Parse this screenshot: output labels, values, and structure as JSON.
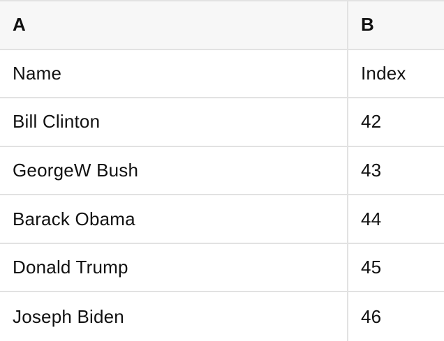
{
  "table": {
    "column_headers": [
      "A",
      "B"
    ],
    "field_labels": [
      "Name",
      "Index"
    ],
    "rows": [
      {
        "name": "Bill Clinton",
        "index": "42"
      },
      {
        "name": "GeorgeW Bush",
        "index": "43"
      },
      {
        "name": "Barack Obama",
        "index": "44"
      },
      {
        "name": "Donald Trump",
        "index": "45"
      },
      {
        "name": "Joseph Biden",
        "index": "46"
      }
    ]
  },
  "colors": {
    "header_background": "#f7f7f7",
    "grid_border": "#e2e2e2",
    "cell_background": "#ffffff",
    "text": "#111111"
  }
}
